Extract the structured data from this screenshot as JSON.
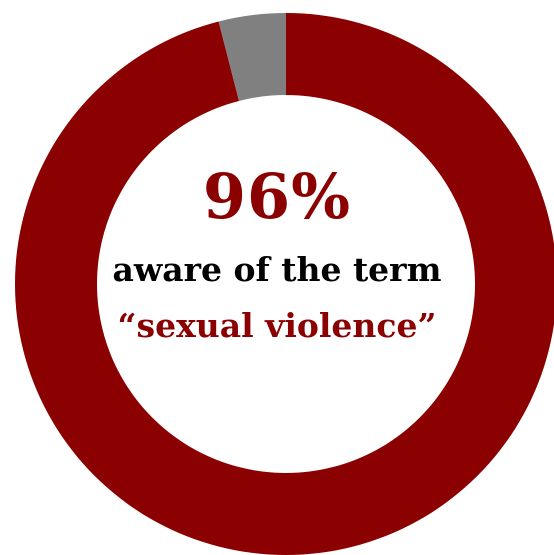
{
  "chart_data": {
    "type": "pie",
    "slices": [
      {
        "value": 96,
        "color": "#8b0000"
      },
      {
        "value": 4,
        "color": "#808080"
      }
    ]
  },
  "center": {
    "value_label": "96%",
    "line1": "aware of the term",
    "line2": "“sexual violence”"
  }
}
